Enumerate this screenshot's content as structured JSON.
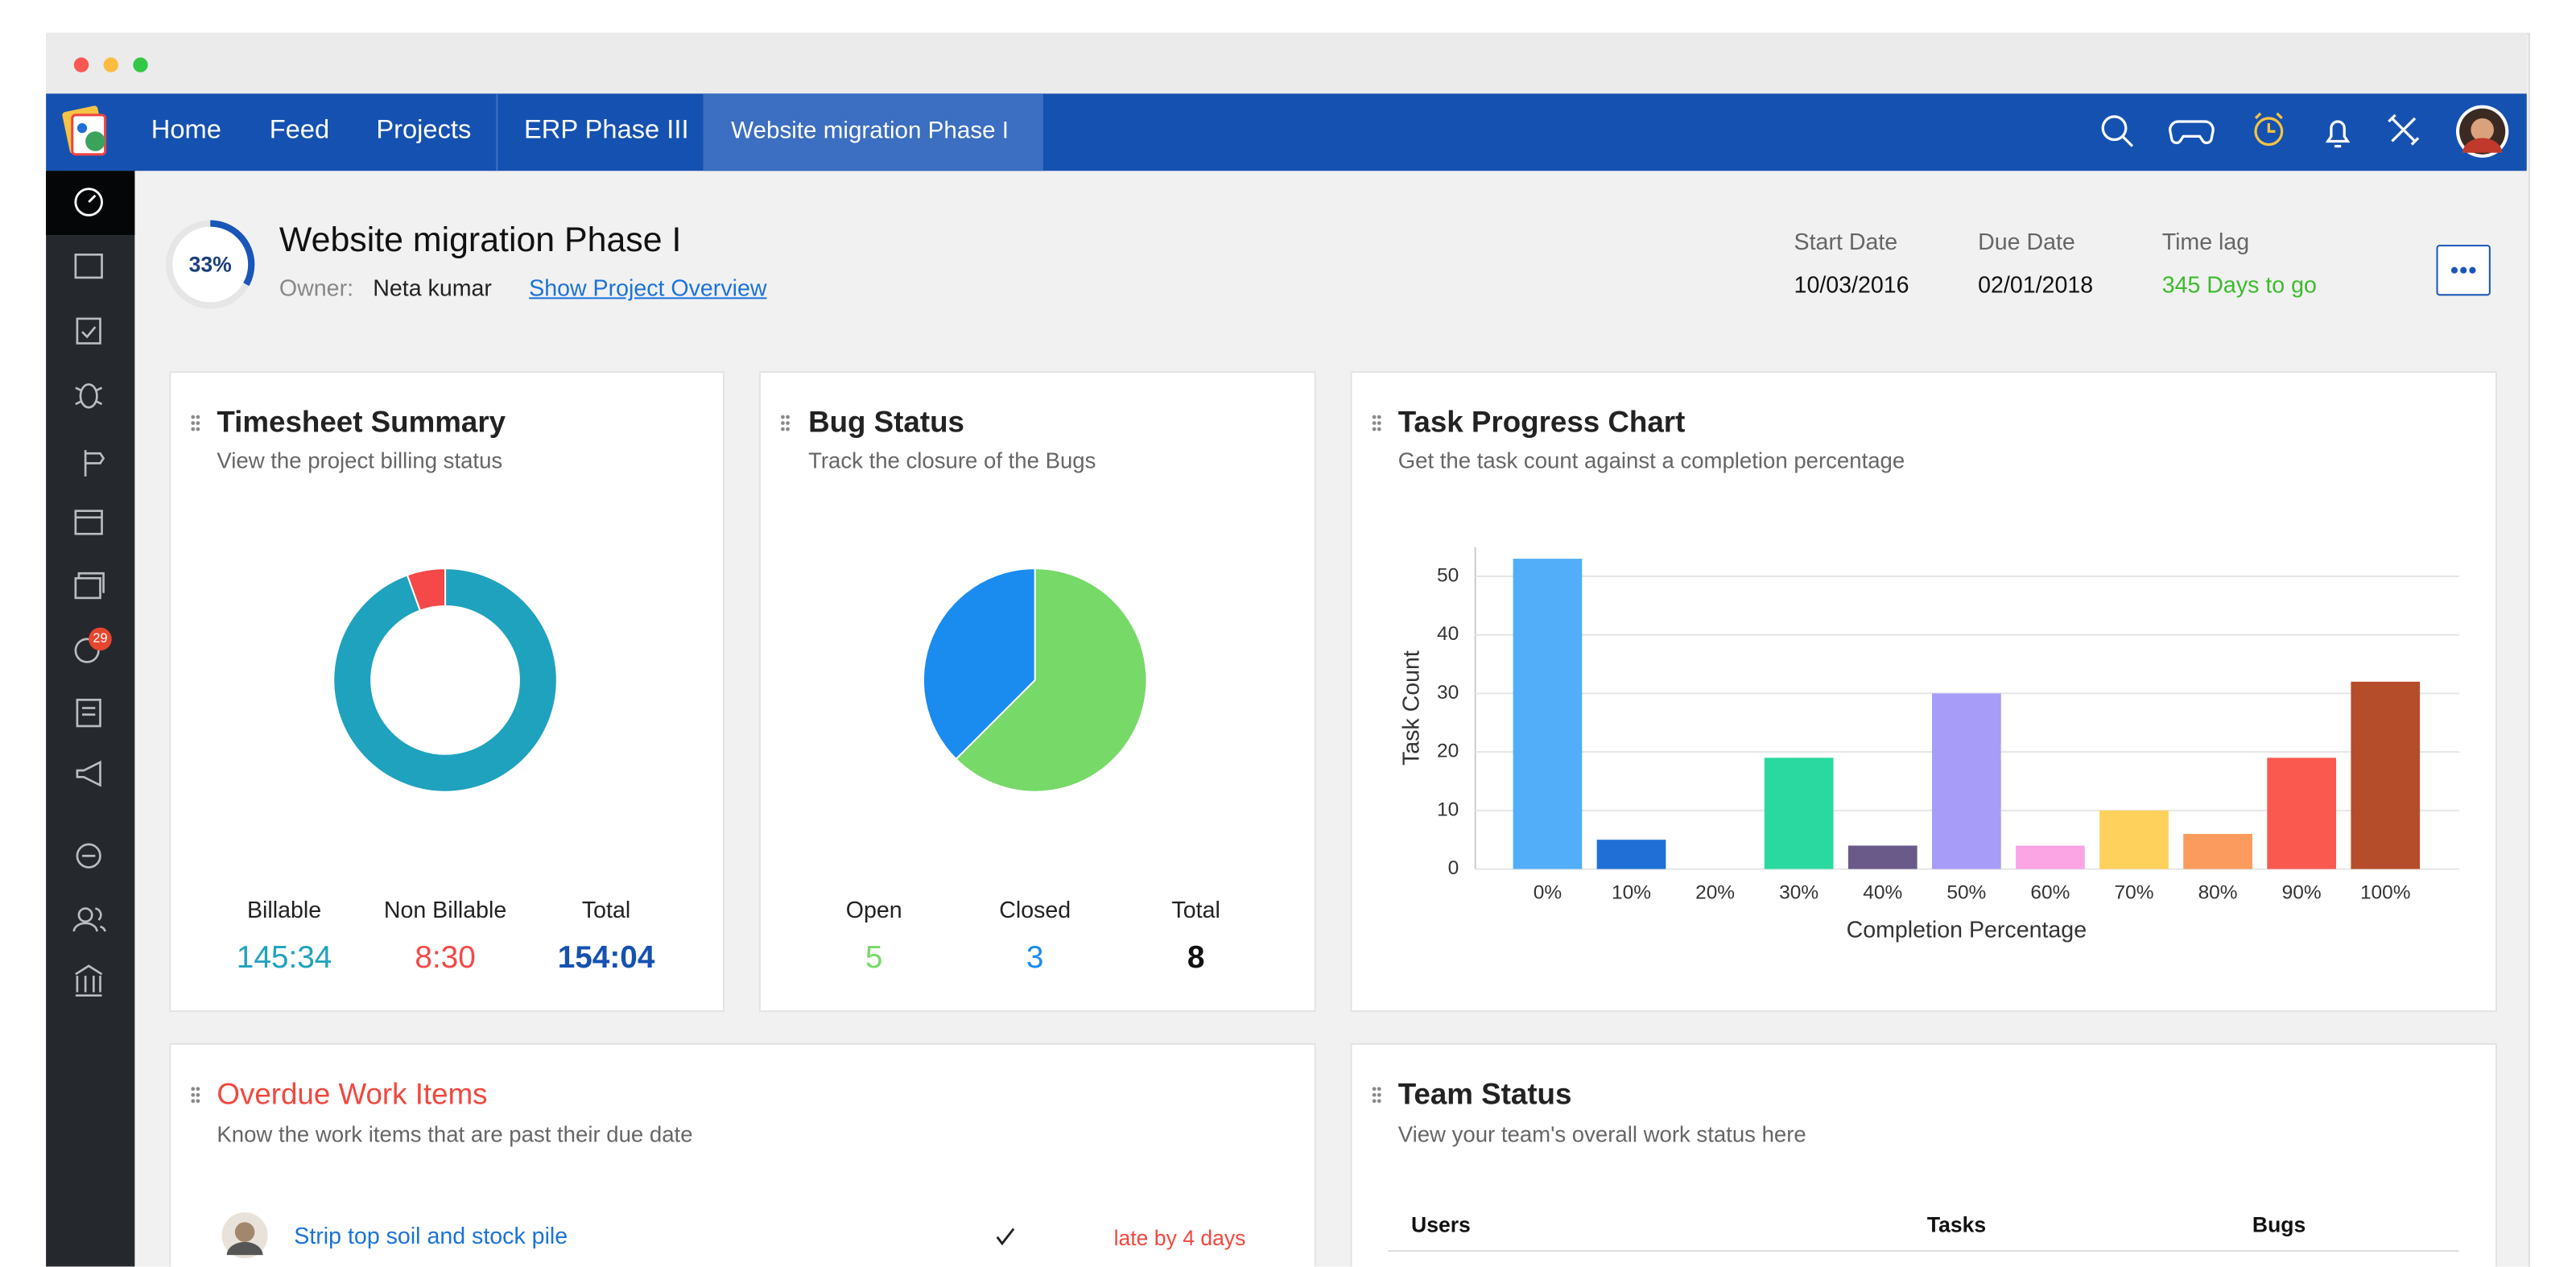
{
  "nav": {
    "items": [
      "Home",
      "Feed",
      "Projects",
      "ERP Phase III",
      "Website migration Phase I"
    ]
  },
  "sidebar": {
    "badge": 29
  },
  "project": {
    "progress": 33,
    "progress_label": "33%",
    "title": "Website migration Phase I",
    "owner_label": "Owner:",
    "owner": "Neta kumar",
    "overview_link": "Show Project Overview",
    "dates": [
      {
        "label": "Start Date",
        "value": "10/03/2016"
      },
      {
        "label": "Due Date",
        "value": "02/01/2018"
      },
      {
        "label": "Time lag",
        "value": "345 Days to go"
      }
    ]
  },
  "chart_data": [
    {
      "type": "donut",
      "title": "Timesheet Summary",
      "subtitle": "View the project billing status",
      "categories": [
        "Billable",
        "Non Billable"
      ],
      "values": [
        145.5667,
        8.5
      ],
      "value_labels": [
        "145:34",
        "8:30"
      ],
      "colors": [
        "#1fa2bd",
        "#f54848"
      ],
      "total_label": "Total",
      "total": 154.0667,
      "total_value_label": "154:04"
    },
    {
      "type": "pie",
      "title": "Bug Status",
      "subtitle": "Track the closure of the Bugs",
      "categories": [
        "Open",
        "Closed"
      ],
      "values": [
        5,
        3
      ],
      "colors": [
        "#76d968",
        "#1a8cf0"
      ],
      "total_label": "Total",
      "total": 8
    },
    {
      "type": "bar",
      "title": "Task Progress Chart",
      "subtitle": "Get the task count against a completion percentage",
      "x_label": "Completion Percentage",
      "y_label": "Task Count",
      "categories": [
        "0%",
        "10%",
        "20%",
        "30%",
        "40%",
        "50%",
        "60%",
        "70%",
        "80%",
        "90%",
        "100%"
      ],
      "values": [
        53,
        5,
        0,
        19,
        4,
        30,
        4,
        10,
        6,
        19,
        32
      ],
      "colors": [
        "#52aef8",
        "#1f6fd6",
        "#8e8e8e",
        "#2ad9a0",
        "#6a5a8a",
        "#a89cf9",
        "#fca5e5",
        "#fdd15c",
        "#fb9b5e",
        "#f9594f",
        "#b64d2a"
      ],
      "ylim": [
        0,
        55
      ],
      "yticks": [
        0,
        10,
        20,
        30,
        40,
        50
      ],
      "grid": true
    }
  ],
  "overdue": {
    "title": "Overdue Work Items",
    "subtitle": "Know the work items that are past their due date",
    "items": [
      {
        "name": "Strip top soil and stock pile",
        "status": "late by 4 days"
      }
    ]
  },
  "team": {
    "title": "Team Status",
    "subtitle": "View your team's overall work status here",
    "columns": [
      "Users",
      "Tasks",
      "Bugs"
    ]
  }
}
